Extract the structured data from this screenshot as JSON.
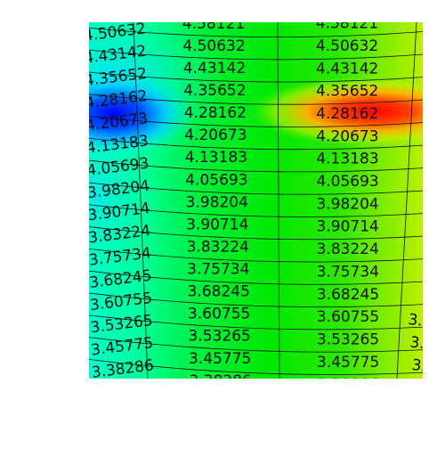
{
  "contour_levels": [
    "4.58121",
    "4.50632",
    "4.43142",
    "4.35652",
    "4.28162",
    "4.20673",
    "4.13183",
    "4.05693",
    "3.98204",
    "3.90714",
    "3.83224",
    "3.75734",
    "3.68245",
    "3.60755",
    "3.53265",
    "3.45775",
    "3.38286"
  ],
  "colormap": {
    "blue": "#0000ff",
    "cyan": "#00e8ff",
    "aqua_green": "#00ff99",
    "green": "#00ee00",
    "yellow_green": "#99ee00",
    "orange": "#ff8800",
    "red": "#ff0000"
  }
}
